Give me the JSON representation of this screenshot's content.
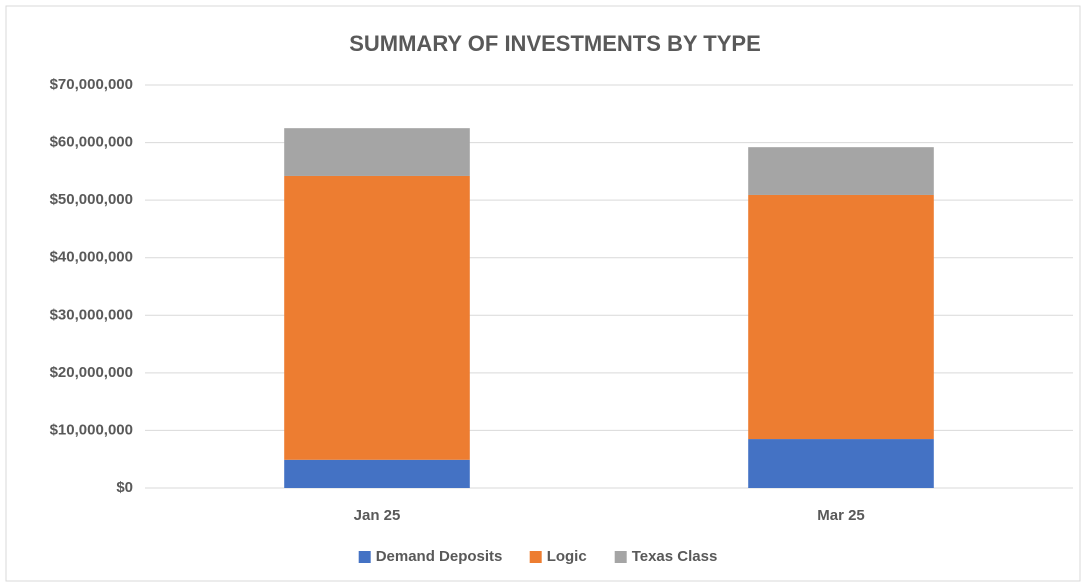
{
  "chart_data": {
    "type": "stacked_bar",
    "title": "SUMMARY OF INVESTMENTS BY TYPE",
    "categories": [
      "Jan 25",
      "Mar 25"
    ],
    "series": [
      {
        "name": "Demand Deposits",
        "color": "#4472c4",
        "values": [
          4900000,
          8500000
        ]
      },
      {
        "name": "Logic",
        "color": "#ed7d31",
        "values": [
          49300000,
          42400000
        ]
      },
      {
        "name": "Texas Class",
        "color": "#a5a5a5",
        "values": [
          8300000,
          8300000
        ]
      }
    ],
    "ylim": [
      0,
      70000000
    ],
    "yticks": [
      {
        "value": 0,
        "label": "$0"
      },
      {
        "value": 10000000,
        "label": "$10,000,000"
      },
      {
        "value": 20000000,
        "label": "$20,000,000"
      },
      {
        "value": 30000000,
        "label": "$30,000,000"
      },
      {
        "value": 40000000,
        "label": "$40,000,000"
      },
      {
        "value": 50000000,
        "label": "$50,000,000"
      },
      {
        "value": 60000000,
        "label": "$60,000,000"
      },
      {
        "value": 70000000,
        "label": "$70,000,000"
      }
    ],
    "grid": true,
    "legend": "bottom"
  }
}
